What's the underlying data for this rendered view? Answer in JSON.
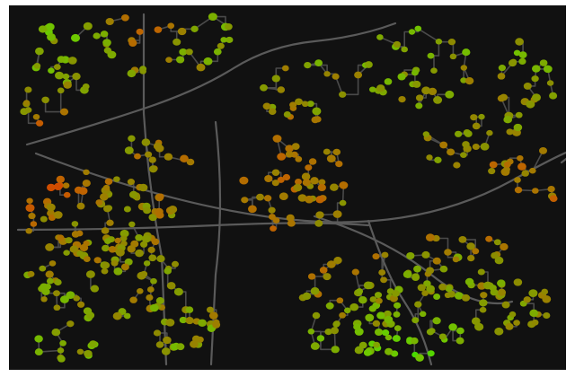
{
  "map": {
    "kind": "road-network-node-map",
    "background": "#111111",
    "road_color": "#4a4a4a",
    "color_scale": {
      "low": "#00ff00",
      "mid": "#8a8a00",
      "high": "#ff0000"
    },
    "legend": null,
    "title": ""
  }
}
